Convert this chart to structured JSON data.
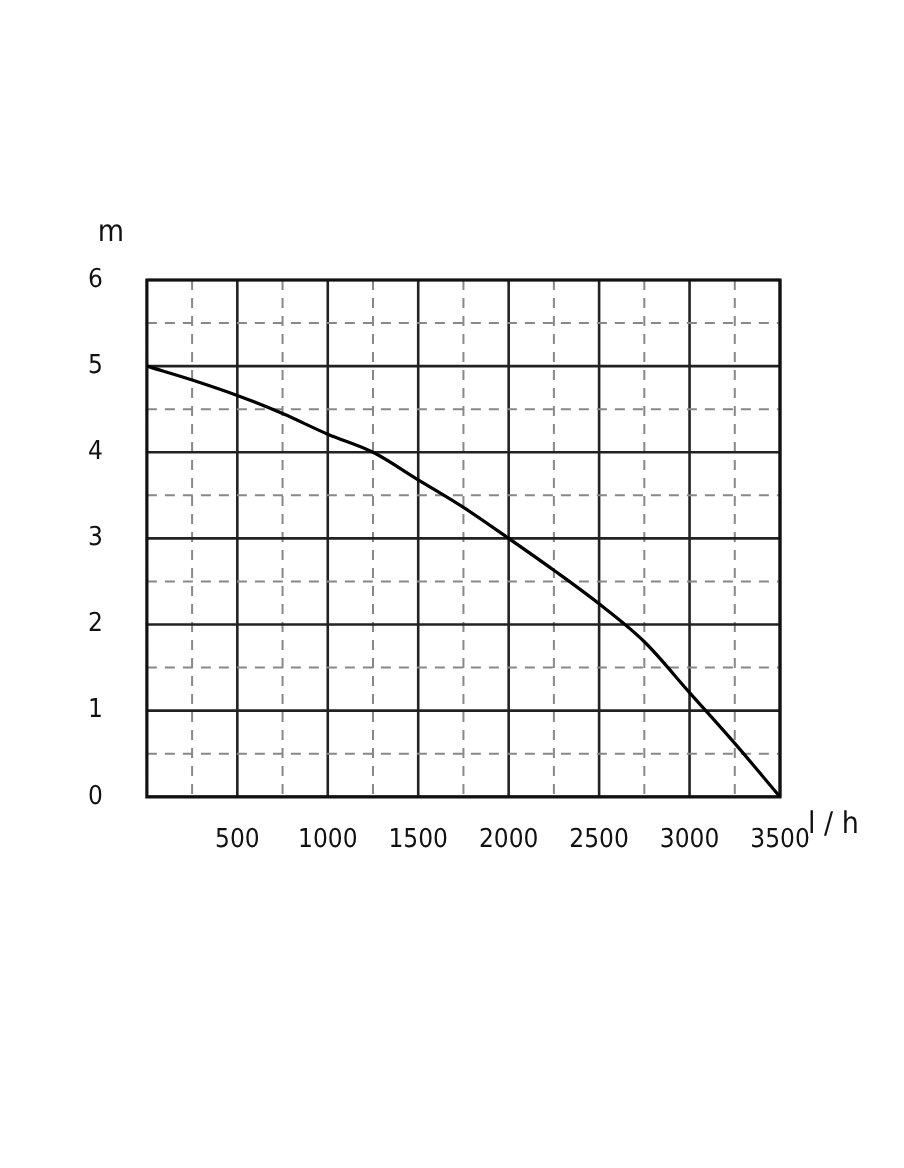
{
  "chart_data": {
    "type": "line",
    "xlabel": "l / h",
    "ylabel": "m",
    "x": [
      0,
      250,
      500,
      750,
      1000,
      1250,
      1500,
      1750,
      2000,
      2250,
      2500,
      2750,
      3000,
      3250,
      3500
    ],
    "series": [
      {
        "color": "#000000",
        "values": [
          5,
          4.84,
          4.66,
          4.45,
          4.21,
          4.0,
          3.68,
          3.36,
          3.0,
          2.63,
          2.24,
          1.8,
          1.21,
          0.62,
          0
        ]
      }
    ],
    "xlim": [
      0,
      3500
    ],
    "xticks": [
      {
        "value": 0,
        "label": null
      },
      {
        "value": 250,
        "label": null
      },
      500,
      {
        "value": 750,
        "label": null
      },
      1000,
      {
        "value": 1250,
        "label": null
      },
      1500,
      {
        "value": 1750,
        "label": null
      },
      2000,
      {
        "value": 2250,
        "label": null
      },
      2500,
      {
        "value": 2750,
        "label": null
      },
      3000,
      {
        "value": 3250,
        "label": null
      },
      3500
    ],
    "ylim": [
      0,
      6
    ],
    "yticks": [
      0,
      {
        "value": 0.5,
        "label": null
      },
      1,
      {
        "value": 1.5,
        "label": null
      },
      2,
      {
        "value": 2.5,
        "label": null
      },
      3,
      {
        "value": 3.5,
        "label": null
      },
      4,
      {
        "value": 4.5,
        "label": null
      },
      5,
      {
        "value": 5.5,
        "label": null
      },
      6
    ],
    "grid": true,
    "marker": "none",
    "line_style": "solid",
    "legend": false
  }
}
